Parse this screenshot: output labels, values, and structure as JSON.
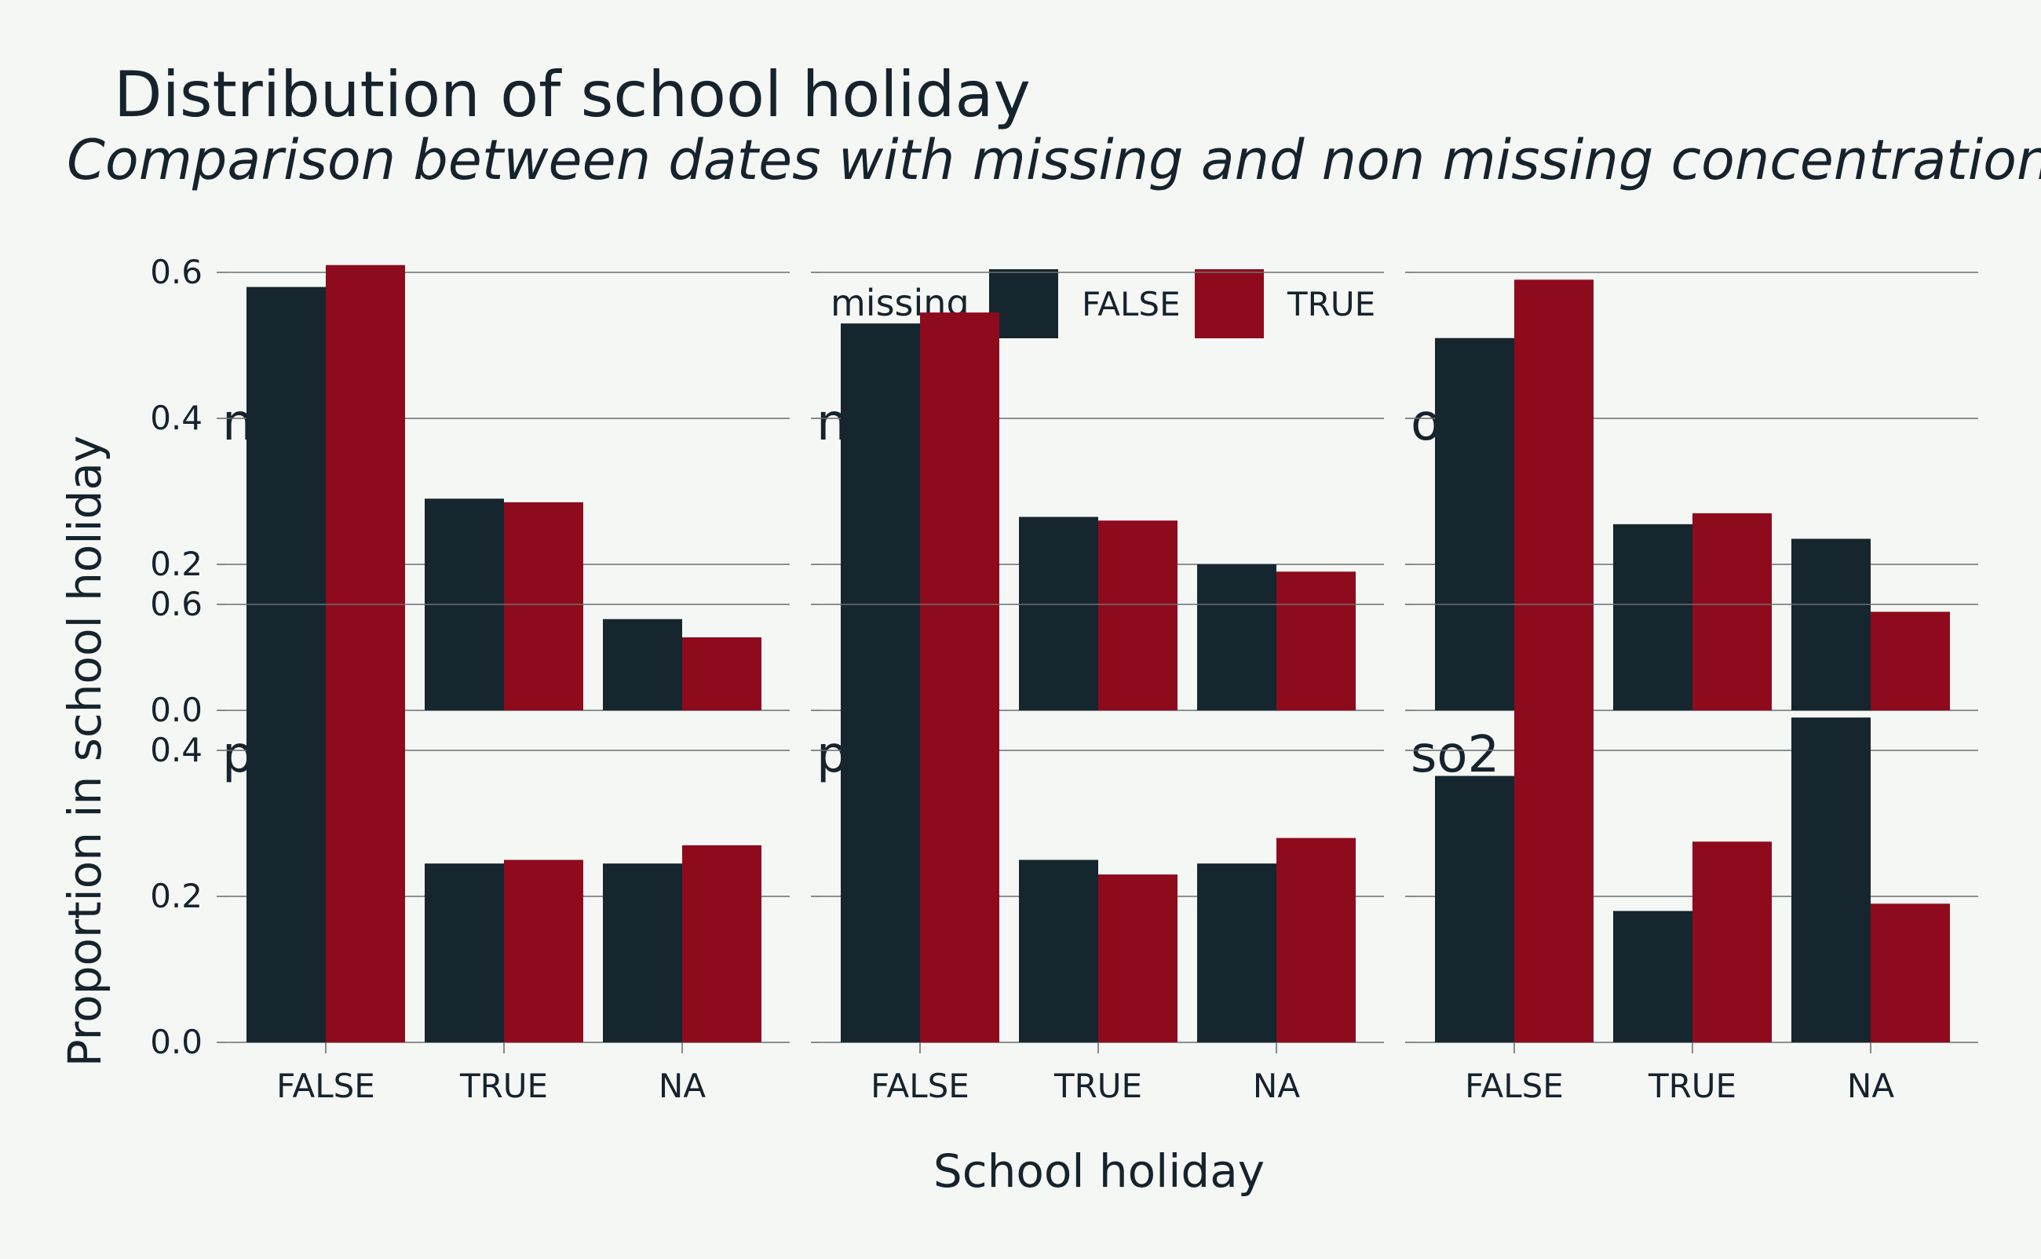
{
  "chart_data": {
    "type": "bar",
    "title": "Distribution of school holiday",
    "subtitle": "Comparison between dates with missing and non missing concentrations",
    "xlabel": "School holiday",
    "ylabel": "Proportion in school holiday",
    "legend": {
      "title": "missing",
      "placement": "top",
      "entries": [
        "FALSE",
        "TRUE"
      ]
    },
    "categories": [
      "FALSE",
      "TRUE",
      "NA"
    ],
    "ylim": [
      0,
      0.7
    ],
    "y_ticks": [
      "0.0",
      "0.2",
      "0.4",
      "0.6"
    ],
    "grid": true,
    "colors": {
      "FALSE": "#16262e",
      "TRUE": "#8e0a1d",
      "background": "#f5f7f4",
      "text": "#16232d"
    },
    "facets": [
      {
        "label": "no",
        "series": [
          {
            "name": "FALSE",
            "values": [
              0.58,
              0.29,
              0.125
            ]
          },
          {
            "name": "TRUE",
            "values": [
              0.61,
              0.285,
              0.1
            ]
          }
        ]
      },
      {
        "label": "no2",
        "series": [
          {
            "name": "FALSE",
            "values": [
              0.53,
              0.265,
              0.2
            ]
          },
          {
            "name": "TRUE",
            "values": [
              0.545,
              0.26,
              0.19
            ]
          }
        ]
      },
      {
        "label": "o3",
        "series": [
          {
            "name": "FALSE",
            "values": [
              0.51,
              0.255,
              0.235
            ]
          },
          {
            "name": "TRUE",
            "values": [
              0.59,
              0.27,
              0.135
            ]
          }
        ]
      },
      {
        "label": "pm10",
        "series": [
          {
            "name": "FALSE",
            "values": [
              0.495,
              0.245,
              0.245
            ]
          },
          {
            "name": "TRUE",
            "values": [
              0.47,
              0.25,
              0.27
            ]
          }
        ]
      },
      {
        "label": "pm2.5",
        "series": [
          {
            "name": "FALSE",
            "values": [
              0.495,
              0.25,
              0.245
            ]
          },
          {
            "name": "TRUE",
            "values": [
              0.48,
              0.23,
              0.28
            ]
          }
        ]
      },
      {
        "label": "so2",
        "series": [
          {
            "name": "FALSE",
            "values": [
              0.365,
              0.18,
              0.445
            ]
          },
          {
            "name": "TRUE",
            "values": [
              0.53,
              0.275,
              0.19
            ]
          }
        ]
      }
    ]
  }
}
